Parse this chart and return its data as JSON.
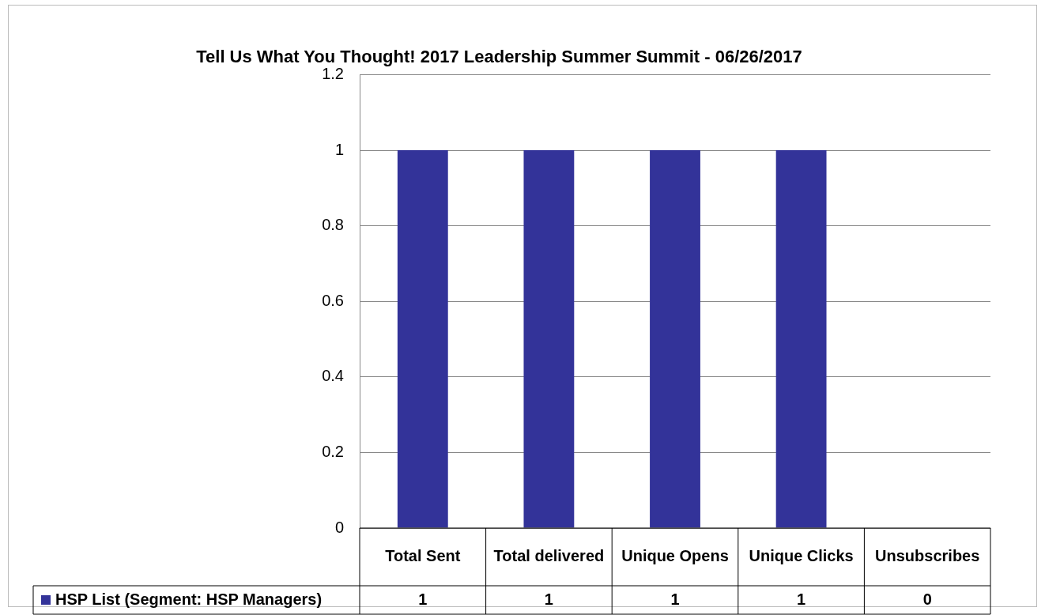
{
  "chart_data": {
    "type": "bar",
    "title": "Tell Us What You Thought! 2017 Leadership Summer Summit - 06/26/2017",
    "categories": [
      "Total Sent",
      "Total delivered",
      "Unique Opens",
      "Unique Clicks",
      "Unsubscribes"
    ],
    "series": [
      {
        "name": "HSP List (Segment: HSP Managers)",
        "color": "#333399",
        "values": [
          1,
          1,
          1,
          1,
          0
        ]
      }
    ],
    "ylim": [
      0,
      1.2
    ],
    "yticks": [
      0,
      0.2,
      0.4,
      0.6,
      0.8,
      1,
      1.2
    ],
    "grid": "y",
    "data_labels": true
  }
}
